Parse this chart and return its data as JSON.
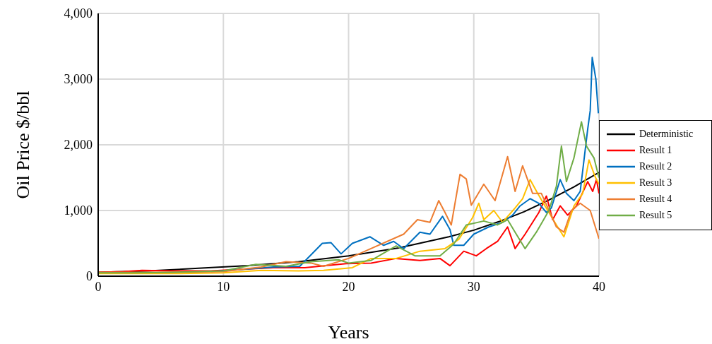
{
  "chart_data": {
    "type": "line",
    "xlabel": "Years",
    "ylabel": "Oil Price $/bbl",
    "xlim": [
      0,
      40
    ],
    "xticks": [
      0,
      10,
      20,
      30,
      40
    ],
    "ylim": [
      0,
      4000
    ],
    "yticks": [
      0,
      {
        "value": 1000,
        "label": "1,000"
      },
      {
        "value": 2000,
        "label": "2,000"
      },
      {
        "value": 3000,
        "label": "3,000"
      },
      {
        "value": 4000,
        "label": "4,000"
      }
    ],
    "grid": true,
    "legend": "right",
    "marker": "none",
    "line_style": "solid",
    "series": [
      {
        "name": "Deterministic",
        "color": "#000000",
        "x": [
          0,
          4,
          8,
          12,
          16,
          20,
          24,
          28,
          30,
          32,
          34,
          36,
          38,
          40
        ],
        "values": [
          60,
          80,
          120,
          160,
          220,
          310,
          430,
          600,
          700,
          830,
          980,
          1160,
          1360,
          1580
        ]
      },
      {
        "name": "Result 1",
        "color": "#ff0000",
        "x": [
          0,
          2,
          3.5,
          6,
          9,
          12,
          14,
          16.5,
          19.8,
          21.8,
          23.8,
          25.7,
          27.3,
          28.1,
          29.2,
          30.2,
          31,
          31.9,
          32.7,
          33.3,
          34.1,
          35.2,
          35.8,
          36.3,
          36.9,
          37.5,
          38.2,
          39.1,
          39.5,
          39.8,
          40
        ],
        "values": [
          60,
          70,
          90,
          80,
          80,
          110,
          130,
          130,
          190,
          200,
          270,
          240,
          270,
          160,
          380,
          310,
          420,
          530,
          750,
          420,
          640,
          970,
          1220,
          860,
          1070,
          930,
          1070,
          1440,
          1290,
          1470,
          1260
        ]
      },
      {
        "name": "Result 2",
        "color": "#0070c0",
        "x": [
          9,
          12,
          14,
          16.1,
          17.9,
          18.6,
          19.4,
          20.3,
          21.7,
          22.8,
          23.6,
          24.4,
          25.7,
          26.5,
          27.5,
          28.1,
          28.4,
          29.2,
          30,
          31.2,
          32.3,
          33.1,
          33.7,
          34.5,
          35.2,
          35.8,
          36.2,
          36.9,
          37.4,
          38,
          38.5,
          39.1,
          39.3,
          39.46,
          39.75,
          39.95
        ],
        "values": [
          70,
          110,
          140,
          150,
          500,
          510,
          340,
          500,
          600,
          470,
          530,
          420,
          670,
          640,
          910,
          710,
          470,
          470,
          640,
          750,
          820,
          930,
          1070,
          1180,
          1110,
          970,
          1040,
          1470,
          1260,
          1150,
          1290,
          2240,
          2520,
          3330,
          3000,
          2480
        ]
      },
      {
        "name": "Result 3",
        "color": "#ffc000",
        "x": [
          0,
          3,
          6,
          10,
          13,
          16,
          18,
          20.3,
          21.8,
          23.8,
          25.7,
          27.7,
          28.8,
          29.9,
          30.4,
          30.8,
          31.6,
          32.3,
          33.3,
          33.9,
          34.5,
          35.1,
          36,
          36.6,
          37.2,
          38,
          38.7,
          39.2,
          39.7,
          40
        ],
        "values": [
          40,
          40,
          40,
          50,
          90,
          80,
          90,
          130,
          270,
          270,
          380,
          420,
          560,
          890,
          1110,
          860,
          1000,
          820,
          1040,
          1180,
          1470,
          1260,
          970,
          780,
          600,
          1070,
          1260,
          1770,
          1510,
          1400
        ]
      },
      {
        "name": "Result 4",
        "color": "#ed7d31",
        "x": [
          0,
          3,
          6,
          10,
          13,
          15,
          17,
          18,
          20,
          24.4,
          25.5,
          26.5,
          27.2,
          27.7,
          28.2,
          28.9,
          29.4,
          29.8,
          30.8,
          31.7,
          32.7,
          33.3,
          33.9,
          34.7,
          35.4,
          36.6,
          37.2,
          37.8,
          38.5,
          39.3,
          40
        ],
        "values": [
          60,
          60,
          60,
          70,
          140,
          220,
          200,
          150,
          270,
          640,
          860,
          820,
          1150,
          970,
          780,
          1550,
          1480,
          1080,
          1400,
          1150,
          1820,
          1290,
          1680,
          1260,
          1260,
          750,
          670,
          1000,
          1110,
          1000,
          570
        ]
      },
      {
        "name": "Result 5",
        "color": "#70ad47",
        "x": [
          0,
          3,
          6,
          10,
          12.6,
          15,
          17,
          19.2,
          20,
          21.8,
          23.8,
          25.3,
          27.3,
          28.4,
          29.4,
          30.8,
          31.9,
          32.7,
          33.3,
          34.1,
          35,
          36,
          36.6,
          37,
          37.4,
          38,
          38.6,
          39,
          39.6,
          40
        ],
        "values": [
          50,
          50,
          60,
          80,
          180,
          150,
          220,
          250,
          200,
          240,
          460,
          310,
          310,
          490,
          780,
          840,
          780,
          860,
          670,
          420,
          670,
          1000,
          1370,
          1980,
          1440,
          1800,
          2350,
          1980,
          1800,
          1500
        ]
      }
    ]
  }
}
